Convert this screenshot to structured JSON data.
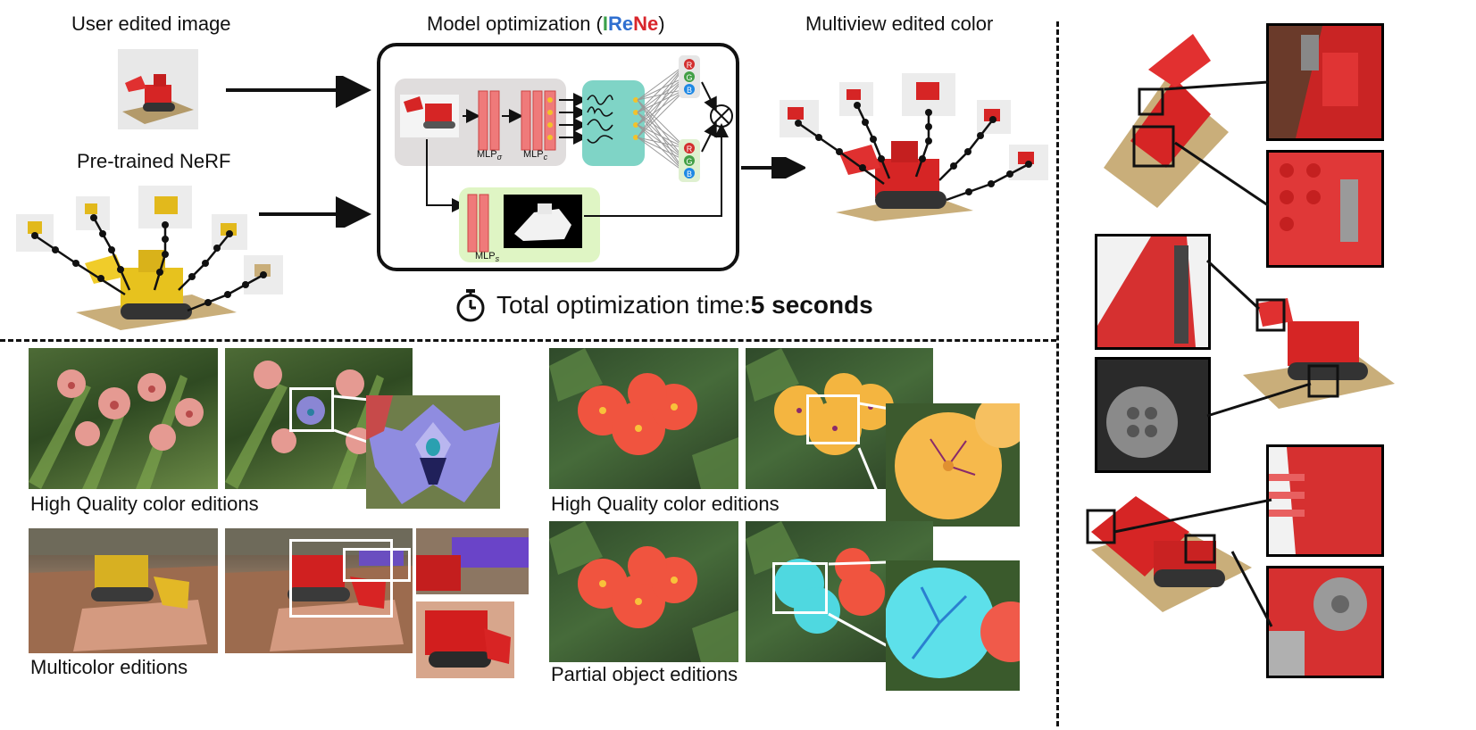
{
  "top": {
    "user_edited_label": "User edited image",
    "pretrained_label": "Pre-trained NeRF",
    "model_title_prefix": "Model optimization (",
    "model_title_i": "I",
    "model_title_re": "Re",
    "model_title_ne": "Ne",
    "model_title_suffix": ")",
    "multiview_label": "Multiview edited color",
    "time_prefix": "Total optimization time: ",
    "time_value": "5 seconds",
    "colors": {
      "i": "#3aa04a",
      "re": "#2f6fd0",
      "ne": "#d8262c"
    }
  },
  "network": {
    "mlp_sigma_label": "MLP",
    "mlp_sigma_sub": "σ",
    "mlp_c_label": "MLP",
    "mlp_c_sub": "c",
    "mlp_s_label": "MLP",
    "mlp_s_sub": "s",
    "rgb_top": [
      "R",
      "G",
      "B"
    ],
    "rgb_bottom": [
      "R",
      "G",
      "B"
    ],
    "multiply_symbol": "⊗"
  },
  "bottom_left": {
    "hq_label": "High Quality color editions",
    "multicolor_label": "Multicolor editions"
  },
  "bottom_right": {
    "hq_label": "High Quality color editions",
    "partial_label": "Partial object editions"
  }
}
